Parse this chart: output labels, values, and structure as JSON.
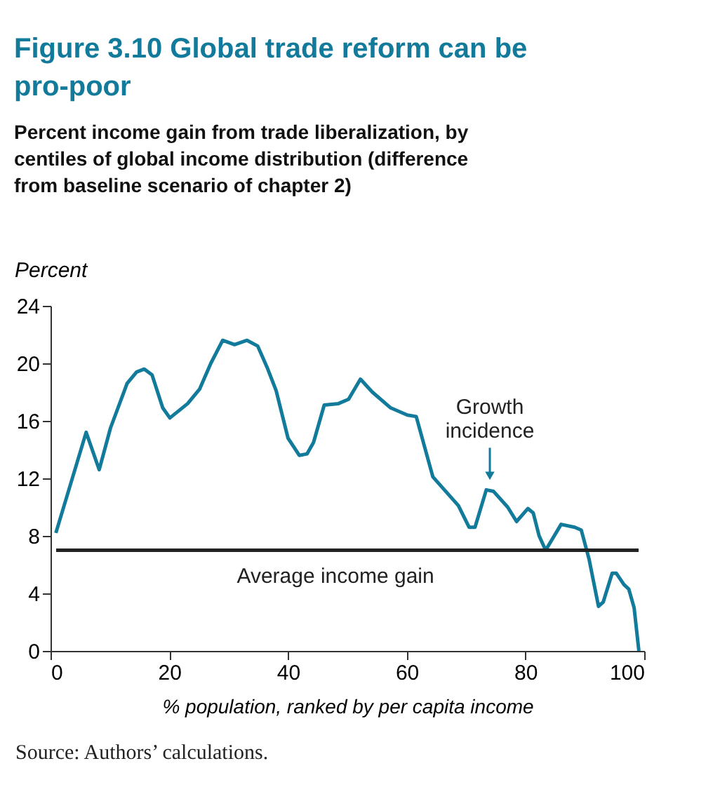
{
  "chart_data": {
    "type": "line",
    "title": "Figure 3.10  Global trade reform can be pro-poor",
    "subtitle": "Percent income gain from trade liberalization, by centiles of global income distribution (difference from baseline scenario of chapter 2)",
    "xlabel": "% population, ranked by per capita income",
    "ylabel": "Percent",
    "x": [
      0.9,
      6,
      8.2,
      10.1,
      12.9,
      14.5,
      15.8,
      17.1,
      18.9,
      20.1,
      21.9,
      23.1,
      25.1,
      27,
      29,
      31,
      33.1,
      34.9,
      36.5,
      38,
      40,
      41.9,
      43.2,
      44.3,
      46.1,
      48.5,
      50.2,
      52.2,
      54.2,
      57.3,
      60.1,
      61.6,
      64.4,
      68.7,
      70.5,
      71.5,
      73.4,
      74.6,
      77,
      78.5,
      80.4,
      81.3,
      82.3,
      83.4,
      86,
      88.3,
      89.4,
      90.7,
      92.3,
      93.1,
      94.6,
      95.3,
      96.6,
      97.4,
      98.3,
      99.1
    ],
    "series": [
      {
        "color": "#127a9a",
        "values": [
          8.2,
          15.2,
          12.6,
          15.5,
          18.6,
          19.4,
          19.6,
          19.2,
          16.9,
          16.2,
          16.8,
          17.2,
          18.2,
          20.0,
          21.6,
          21.3,
          21.6,
          21.2,
          19.7,
          18.1,
          14.8,
          13.6,
          13.7,
          14.5,
          17.1,
          17.2,
          17.5,
          18.9,
          18.0,
          16.9,
          16.4,
          16.3,
          12.1,
          10.1,
          8.6,
          8.6,
          11.2,
          11.1,
          10.0,
          9.0,
          9.9,
          9.6,
          8.0,
          7.0,
          8.8,
          8.6,
          8.4,
          6.4,
          3.1,
          3.4,
          5.4,
          5.4,
          4.6,
          4.3,
          3.0,
          0.0
        ]
      }
    ],
    "xlim": [
      0,
      100
    ],
    "xticks": [
      0,
      20,
      40,
      60,
      80,
      100
    ],
    "ylim": [
      0,
      24
    ],
    "yticks": [
      0,
      4,
      8,
      12,
      16,
      20,
      24
    ],
    "marker": "none",
    "line_style": "solid",
    "ref_lines": [
      {
        "axis": "y",
        "value": 7.0,
        "label": "Average income gain",
        "color": "#222222"
      }
    ],
    "annotations": [
      {
        "text": "Growth incidence",
        "x": 74,
        "y": 11.2
      },
      "Source: Authors’ calculations."
    ]
  }
}
